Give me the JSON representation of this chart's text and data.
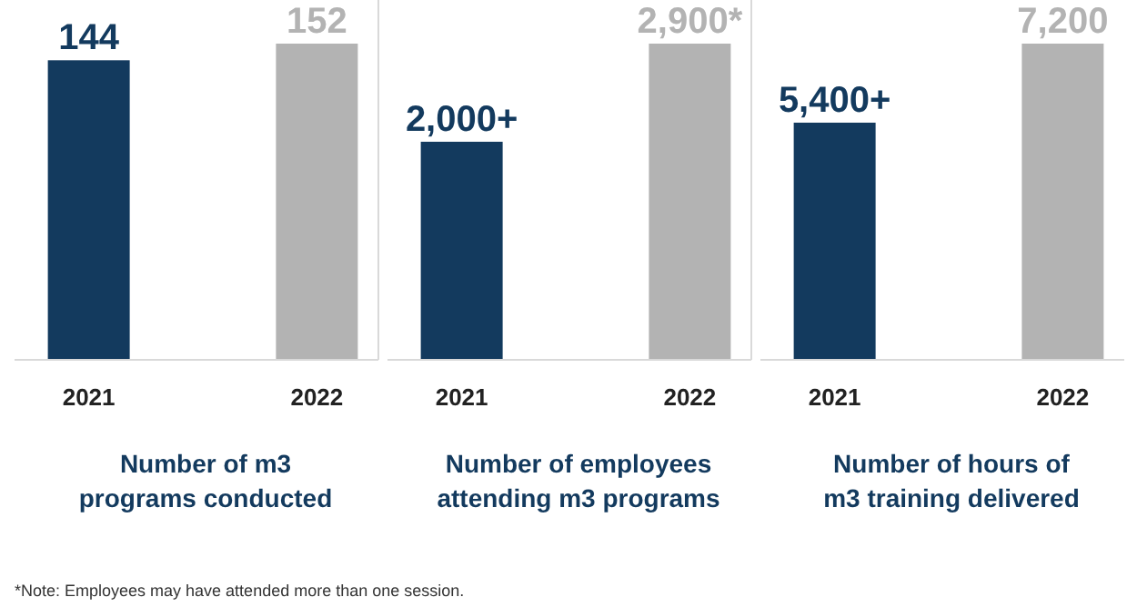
{
  "chart_data": [
    {
      "type": "bar",
      "categories": [
        "2021",
        "2022"
      ],
      "values": [
        144,
        152
      ],
      "colors": [
        "#133a5e",
        "#b3b3b3"
      ],
      "value_labels": [
        "144",
        "152"
      ],
      "xlabel": "Number of m3\nprograms conducted",
      "annotations": [
        "*Note: Employees may have attended more than one session."
      ]
    },
    {
      "type": "bar",
      "categories": [
        "2021",
        "2022"
      ],
      "values": [
        2000,
        2900
      ],
      "colors": [
        "#133a5e",
        "#b3b3b3"
      ],
      "value_labels": [
        "2,000+",
        "2,900*"
      ],
      "xlabel": "Number of employees\nattending m3 programs"
    },
    {
      "type": "bar",
      "categories": [
        "2021",
        "2022"
      ],
      "values": [
        5400,
        7200
      ],
      "colors": [
        "#133a5e",
        "#b3b3b3"
      ],
      "value_labels": [
        "5,400+",
        "7,200"
      ],
      "xlabel": "Number of hours of\nm3 training delivered"
    }
  ]
}
